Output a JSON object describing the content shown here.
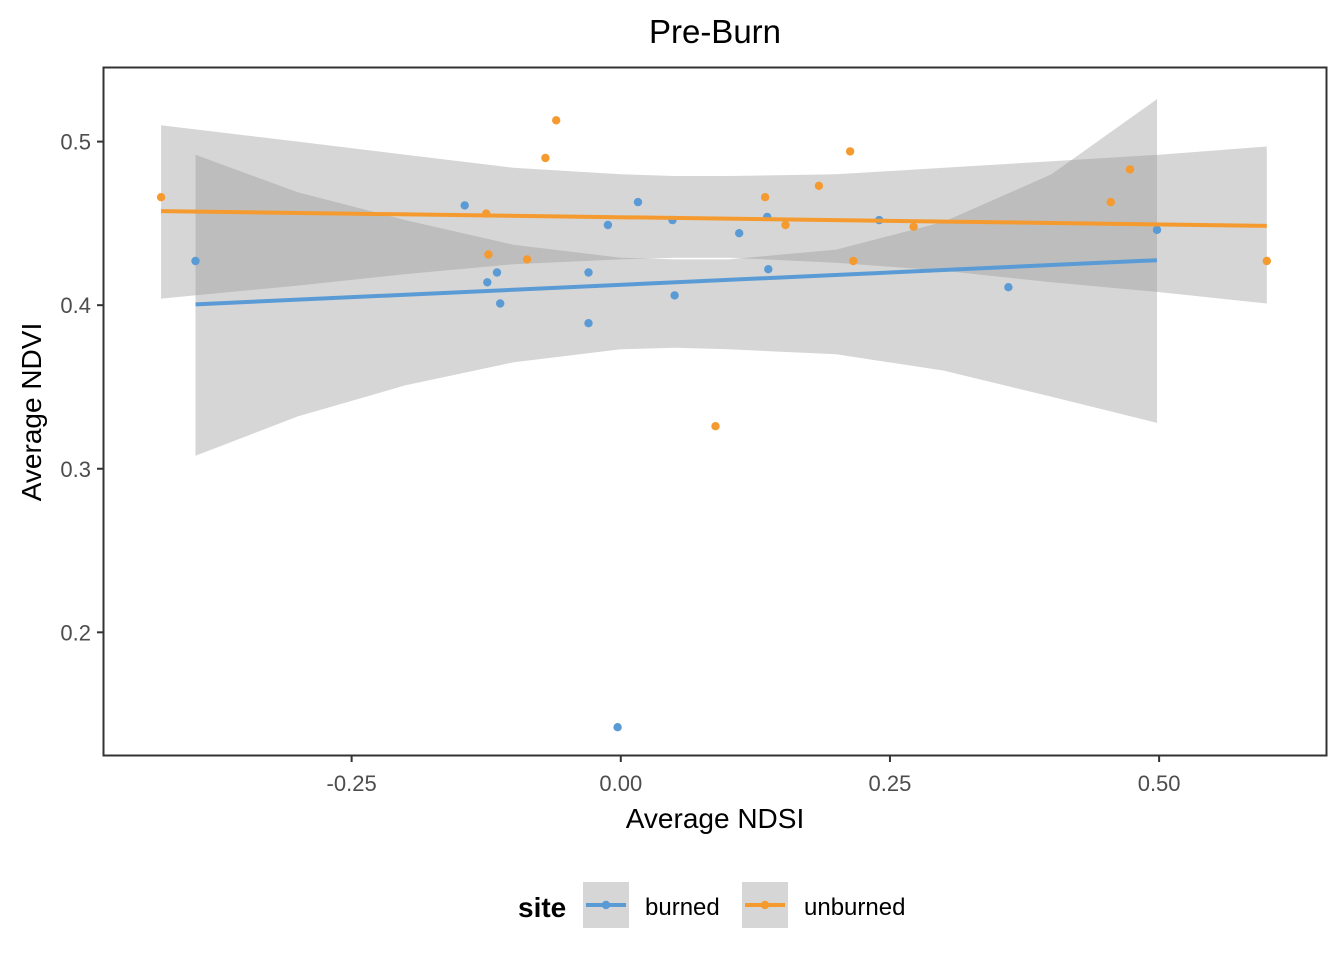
{
  "chart_data": {
    "type": "scatter",
    "title": "Pre-Burn",
    "xlabel": "Average NDSI",
    "ylabel": "Average NDVI",
    "xlim": [
      -0.48,
      0.655
    ],
    "ylim": [
      0.125,
      0.545
    ],
    "x_ticks": [
      -0.25,
      0.0,
      0.25,
      0.5
    ],
    "x_tick_labels": [
      "-0.25",
      "0.00",
      "0.25",
      "0.50"
    ],
    "y_ticks": [
      0.2,
      0.3,
      0.4,
      0.5
    ],
    "y_tick_labels": [
      "0.2",
      "0.3",
      "0.4",
      "0.5"
    ],
    "grid": false,
    "legend": {
      "title": "site",
      "position": "bottom"
    },
    "series": [
      {
        "name": "burned",
        "color": "#5B9BD5",
        "points": [
          [
            -0.395,
            0.427
          ],
          [
            -0.145,
            0.461
          ],
          [
            -0.124,
            0.414
          ],
          [
            -0.115,
            0.42
          ],
          [
            -0.112,
            0.401
          ],
          [
            -0.03,
            0.42
          ],
          [
            -0.03,
            0.389
          ],
          [
            -0.012,
            0.449
          ],
          [
            -0.003,
            0.142
          ],
          [
            0.016,
            0.463
          ],
          [
            0.048,
            0.452
          ],
          [
            0.05,
            0.406
          ],
          [
            0.11,
            0.444
          ],
          [
            0.136,
            0.454
          ],
          [
            0.137,
            0.422
          ],
          [
            0.24,
            0.452
          ],
          [
            0.36,
            0.411
          ],
          [
            0.498,
            0.446
          ]
        ],
        "fit": {
          "x": [
            -0.395,
            0.498
          ],
          "y": [
            0.4005,
            0.4275
          ]
        },
        "ci": {
          "x": [
            -0.395,
            -0.3,
            -0.2,
            -0.1,
            0.0,
            0.05,
            0.1,
            0.2,
            0.3,
            0.4,
            0.498
          ],
          "lower": [
            0.308,
            0.332,
            0.351,
            0.365,
            0.373,
            0.374,
            0.373,
            0.37,
            0.36,
            0.344,
            0.328
          ],
          "upper": [
            0.492,
            0.469,
            0.452,
            0.437,
            0.429,
            0.428,
            0.428,
            0.434,
            0.451,
            0.48,
            0.526
          ]
        }
      },
      {
        "name": "unburned",
        "color": "#F59A2F",
        "points": [
          [
            -0.427,
            0.466
          ],
          [
            -0.125,
            0.456
          ],
          [
            -0.123,
            0.431
          ],
          [
            -0.087,
            0.428
          ],
          [
            -0.07,
            0.49
          ],
          [
            -0.06,
            0.513
          ],
          [
            0.088,
            0.326
          ],
          [
            0.134,
            0.466
          ],
          [
            0.153,
            0.449
          ],
          [
            0.184,
            0.473
          ],
          [
            0.213,
            0.494
          ],
          [
            0.216,
            0.427
          ],
          [
            0.272,
            0.448
          ],
          [
            0.455,
            0.463
          ],
          [
            0.473,
            0.483
          ],
          [
            0.6,
            0.427
          ]
        ],
        "fit": {
          "x": [
            -0.427,
            0.6
          ],
          "y": [
            0.4575,
            0.4485
          ]
        },
        "ci": {
          "x": [
            -0.427,
            -0.3,
            -0.2,
            -0.1,
            0.0,
            0.05,
            0.1,
            0.2,
            0.3,
            0.4,
            0.5,
            0.6
          ],
          "lower": [
            0.404,
            0.412,
            0.419,
            0.425,
            0.428,
            0.429,
            0.429,
            0.426,
            0.421,
            0.414,
            0.408,
            0.401
          ],
          "upper": [
            0.51,
            0.5,
            0.492,
            0.484,
            0.48,
            0.479,
            0.479,
            0.48,
            0.484,
            0.488,
            0.492,
            0.497
          ]
        }
      }
    ]
  }
}
